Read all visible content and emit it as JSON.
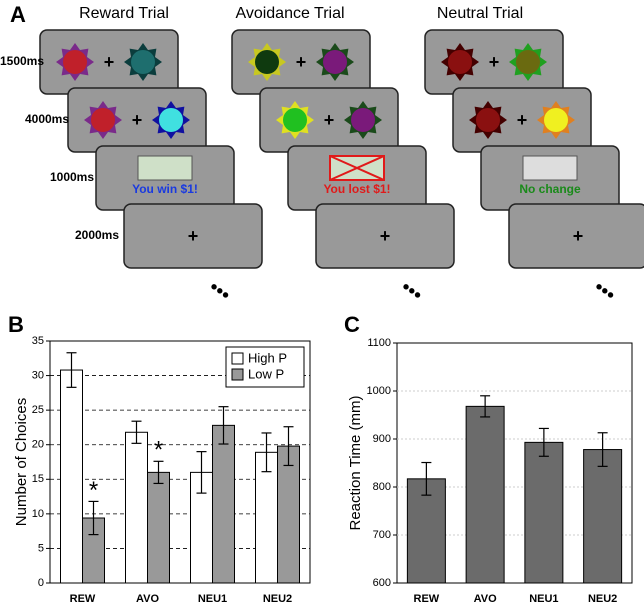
{
  "panel_a": {
    "label": "A",
    "trials": [
      {
        "title": "Reward Trial",
        "feedback": "You win $1!"
      },
      {
        "title": "Avoidance Trial",
        "feedback": "You lost $1!"
      },
      {
        "title": "Neutral Trial",
        "feedback": "No change"
      }
    ],
    "timings": [
      "1500ms",
      "4000ms",
      "1000ms",
      "2000ms"
    ],
    "fixation": "+",
    "ellipsis": "•••"
  },
  "chart_data": [
    {
      "panel": "B",
      "type": "bar",
      "ylabel": "Number of Choices",
      "categories": [
        "REW",
        "AVO",
        "NEU1",
        "NEU2"
      ],
      "series": [
        {
          "name": "High P",
          "color": "#ffffff",
          "values": [
            30.8,
            21.8,
            16,
            18.9
          ],
          "errors": [
            2.5,
            1.6,
            3,
            2.8
          ]
        },
        {
          "name": "Low P",
          "color": "#999999",
          "values": [
            9.4,
            16,
            22.8,
            19.8
          ],
          "errors": [
            2.4,
            1.6,
            2.7,
            2.8
          ]
        }
      ],
      "annotations": [
        "*",
        "*"
      ],
      "ylim": [
        0,
        35
      ],
      "yticks": [
        0,
        5,
        10,
        15,
        20,
        25,
        30,
        35
      ],
      "grid": true,
      "legend": "upper right"
    },
    {
      "panel": "C",
      "type": "bar",
      "ylabel": "Reaction Time (mm)",
      "categories": [
        "REW",
        "AVO",
        "NEU1",
        "NEU2"
      ],
      "values": [
        817,
        968,
        893,
        878
      ],
      "errors": [
        34,
        22,
        29,
        35
      ],
      "color": "#6b6b6b",
      "ylim": [
        600,
        1100
      ],
      "yticks": [
        600,
        700,
        800,
        900,
        1000,
        1100
      ],
      "grid": true
    }
  ]
}
